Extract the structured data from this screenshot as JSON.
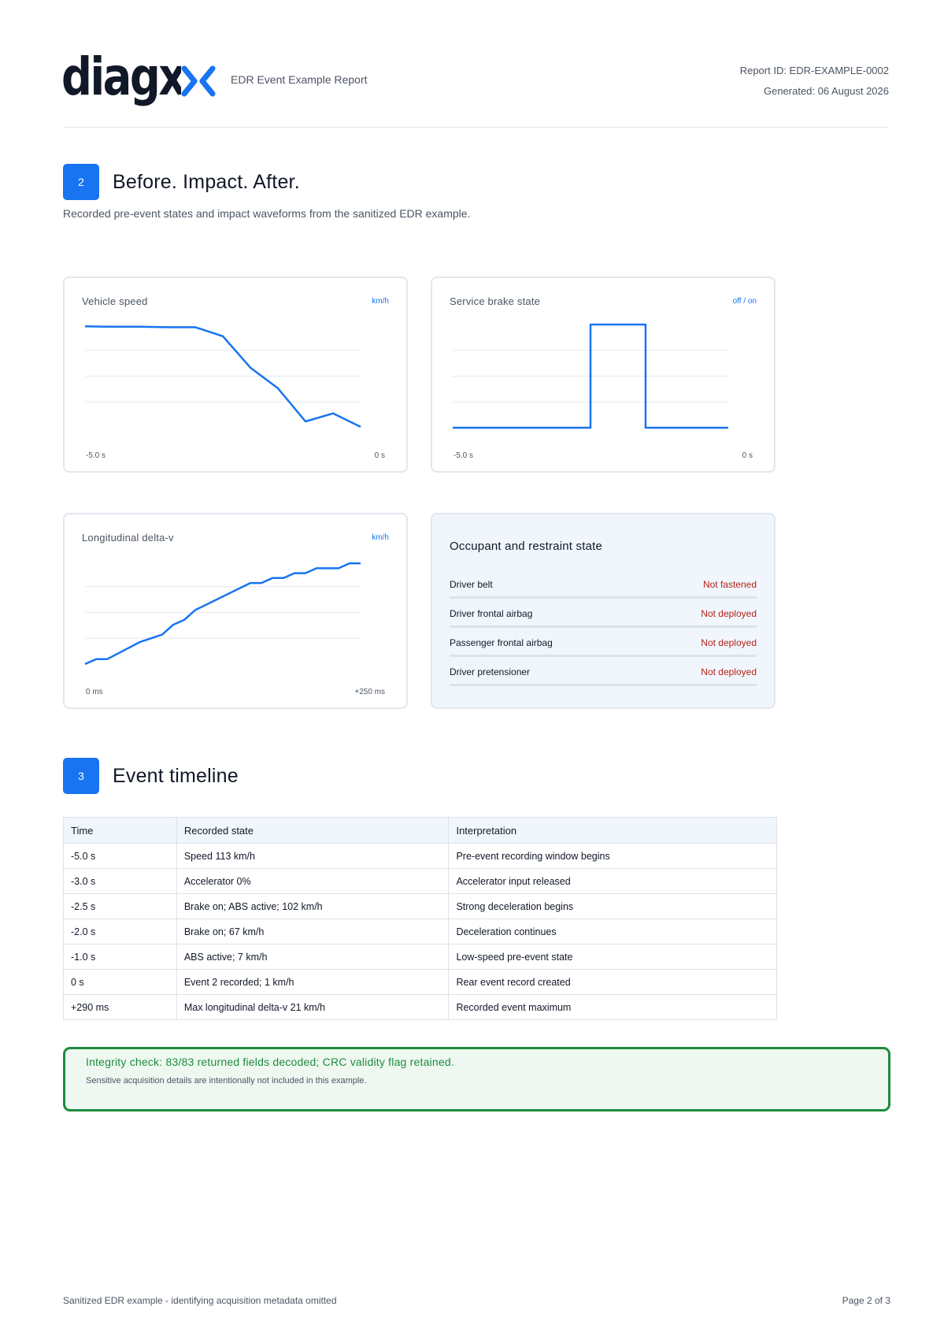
{
  "header": {
    "logo_text": "diagx",
    "report_title": "EDR Event Example Report",
    "report_id": "Report ID: EDR-EXAMPLE-0002",
    "generated": "Generated: 06 August 2026"
  },
  "section2": {
    "number": "2",
    "title": "Before. Impact. After.",
    "description": "Recorded pre-event states and impact waveforms from the sanitized EDR example."
  },
  "charts": {
    "speed": {
      "title": "Vehicle speed",
      "unit": "km/h",
      "x_start": "-5.0 s",
      "x_end": "0 s"
    },
    "brake": {
      "title": "Service brake state",
      "unit": "off / on",
      "x_start": "-5.0 s",
      "x_end": "0 s"
    },
    "delta_v": {
      "title": "Longitudinal delta-v",
      "unit": "km/h",
      "x_start": "0 ms",
      "x_end": "+250 ms"
    }
  },
  "chart_data": [
    {
      "type": "line",
      "title": "Vehicle speed",
      "ylabel": "km/h",
      "x": [
        -5.0,
        -4.5,
        -4.0,
        -3.5,
        -3.0,
        -2.5,
        -2.0,
        -1.5,
        -1.0,
        -0.5,
        0.0
      ],
      "xlim": [
        -5.0,
        0.0
      ],
      "ylim": [
        0,
        115
      ],
      "grid": true,
      "series": [
        {
          "values": [
            113,
            112.5,
            112.5,
            112,
            112,
            102,
            67,
            44,
            7,
            16,
            1
          ]
        }
      ]
    },
    {
      "type": "line",
      "title": "Service brake state",
      "ylabel": "off / on",
      "x": [
        -5.0,
        -2.5,
        -2.5,
        -1.5,
        -1.5,
        0.0
      ],
      "xlim": [
        -5.0,
        0.0
      ],
      "ylim": [
        0,
        1
      ],
      "grid": true,
      "series": [
        {
          "values": [
            0,
            0,
            1,
            1,
            0,
            0
          ]
        }
      ]
    },
    {
      "type": "line",
      "title": "Longitudinal delta-v",
      "ylabel": "km/h",
      "x": [
        0,
        10,
        20,
        50,
        70,
        80,
        90,
        100,
        150,
        160,
        170,
        180,
        190,
        200,
        210,
        230,
        240,
        250
      ],
      "xlim": [
        0,
        250
      ],
      "ylim": [
        0,
        21
      ],
      "grid": true,
      "series": [
        {
          "values": [
            0,
            1,
            1,
            4.5,
            6,
            8,
            9,
            11,
            16.5,
            16.5,
            17.5,
            17.5,
            18.5,
            18.5,
            19.5,
            19.5,
            20.5,
            20.5
          ]
        }
      ]
    }
  ],
  "restraint": {
    "title": "Occupant and restraint state",
    "rows": [
      {
        "label": "Driver belt",
        "value": "Not fastened"
      },
      {
        "label": "Driver frontal airbag",
        "value": "Not deployed"
      },
      {
        "label": "Passenger frontal airbag",
        "value": "Not deployed"
      },
      {
        "label": "Driver pretensioner",
        "value": "Not deployed"
      }
    ]
  },
  "section3": {
    "number": "3",
    "title": "Event timeline"
  },
  "timeline": {
    "columns": [
      "Time",
      "Recorded state",
      "Interpretation"
    ],
    "rows": [
      [
        "-5.0 s",
        "Speed 113 km/h",
        "Pre-event recording window begins"
      ],
      [
        "-3.0 s",
        "Accelerator 0%",
        "Accelerator input released"
      ],
      [
        "-2.5 s",
        "Brake on; ABS active; 102 km/h",
        "Strong deceleration begins"
      ],
      [
        "-2.0 s",
        "Brake on; 67 km/h",
        "Deceleration continues"
      ],
      [
        "-1.0 s",
        "ABS active; 7 km/h",
        "Low-speed pre-event state"
      ],
      [
        "0 s",
        "Event 2 recorded; 1 km/h",
        "Rear event record created"
      ],
      [
        "+290 ms",
        "Max longitudinal delta-v 21 km/h",
        "Recorded event maximum"
      ]
    ]
  },
  "integrity": {
    "main": "Integrity check: 83/83 returned fields decoded; CRC validity flag retained.",
    "sub": "Sensitive acquisition details are intentionally not included in this example."
  },
  "footer": {
    "left": "Sanitized EDR example - identifying acquisition metadata omitted",
    "right": "Page 2 of 3"
  },
  "colors": {
    "accent": "#1874f0",
    "alert": "#b42318",
    "ok": "#1e8b3e"
  }
}
